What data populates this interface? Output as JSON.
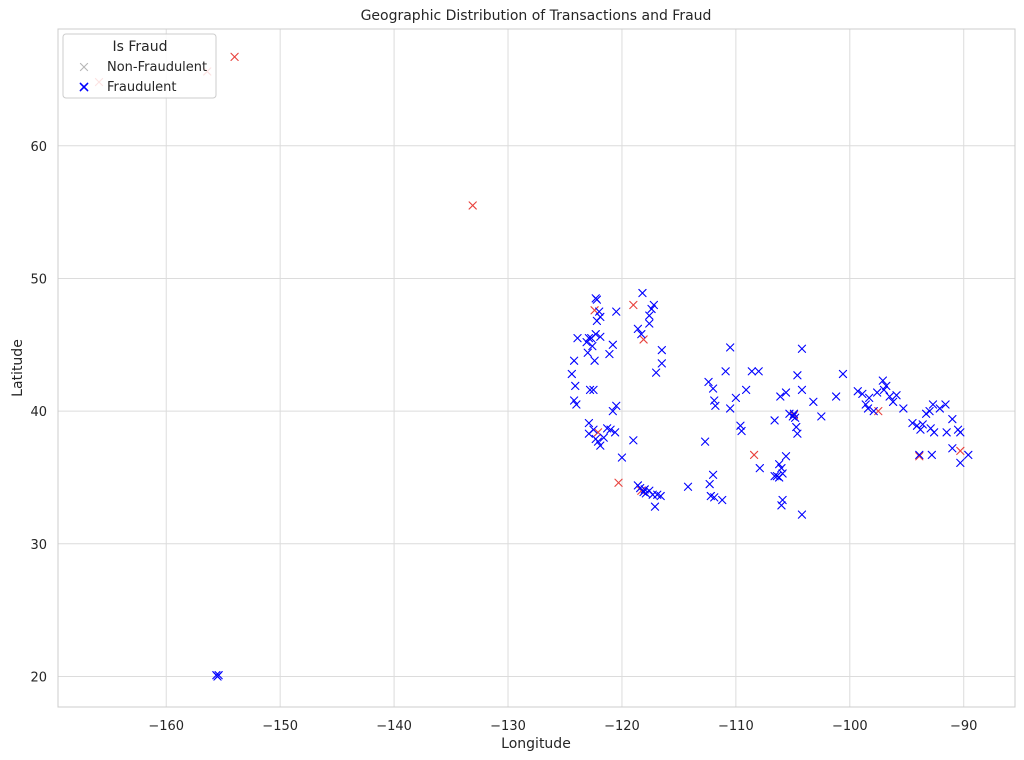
{
  "chart_data": {
    "type": "scatter",
    "title": "Geographic Distribution of Transactions and Fraud",
    "xlabel": "Longitude",
    "ylabel": "Latitude",
    "xlim": [
      -169.5,
      -85.5
    ],
    "ylim": [
      17.7,
      68.8
    ],
    "xticks": [
      -160,
      -150,
      -140,
      -130,
      -120,
      -110,
      -100,
      -90
    ],
    "yticks": [
      20,
      30,
      40,
      50,
      60
    ],
    "xtick_labels": [
      "−160",
      "−150",
      "−140",
      "−130",
      "−120",
      "−110",
      "−100",
      "−90"
    ],
    "ytick_labels": [
      "20",
      "30",
      "40",
      "50",
      "60"
    ],
    "grid": true,
    "legend": {
      "title": "Is Fraud",
      "position": "top-left",
      "entries": [
        "Non-Fraudulent",
        "Fraudulent"
      ]
    },
    "series": [
      {
        "name": "Non-Fraudulent",
        "color": "#e8413c",
        "legend_color": "#b7b7b7",
        "marker": "x",
        "points": [
          [
            -154.0,
            66.7
          ],
          [
            -156.4,
            65.6
          ],
          [
            -165.9,
            64.8
          ],
          [
            -133.1,
            55.5
          ],
          [
            -119.0,
            48.0
          ],
          [
            -122.4,
            47.6
          ],
          [
            -118.1,
            45.4
          ],
          [
            -122.1,
            38.4
          ],
          [
            -120.3,
            34.6
          ],
          [
            -108.4,
            36.7
          ],
          [
            -97.5,
            40.0
          ],
          [
            -93.9,
            36.6
          ],
          [
            -90.3,
            37.0
          ],
          [
            -118.3,
            34.0
          ],
          [
            -104.9,
            39.7
          ]
        ]
      },
      {
        "name": "Fraudulent",
        "color": "#0000ff",
        "marker": "x",
        "points": [
          [
            -155.6,
            20.1
          ],
          [
            -155.4,
            20.1
          ],
          [
            -155.5,
            20.0
          ],
          [
            -122.3,
            48.5
          ],
          [
            -122.2,
            48.4
          ],
          [
            -118.2,
            48.9
          ],
          [
            -117.4,
            47.7
          ],
          [
            -117.2,
            48.0
          ],
          [
            -122.0,
            47.5
          ],
          [
            -121.9,
            47.1
          ],
          [
            -122.2,
            46.8
          ],
          [
            -120.5,
            47.5
          ],
          [
            -117.6,
            47.2
          ],
          [
            -117.6,
            46.6
          ],
          [
            -122.3,
            45.8
          ],
          [
            -121.9,
            45.6
          ],
          [
            -122.7,
            45.5
          ],
          [
            -122.9,
            45.5
          ],
          [
            -123.1,
            45.2
          ],
          [
            -122.6,
            44.9
          ],
          [
            -123.0,
            44.4
          ],
          [
            -123.9,
            45.5
          ],
          [
            -124.2,
            43.8
          ],
          [
            -124.4,
            42.8
          ],
          [
            -124.1,
            41.9
          ],
          [
            -122.8,
            41.6
          ],
          [
            -122.5,
            41.6
          ],
          [
            -122.4,
            43.8
          ],
          [
            -120.8,
            45.0
          ],
          [
            -121.1,
            44.3
          ],
          [
            -116.5,
            44.6
          ],
          [
            -116.5,
            43.6
          ],
          [
            -117.0,
            42.9
          ],
          [
            -118.6,
            46.2
          ],
          [
            -118.3,
            45.8
          ],
          [
            -124.2,
            40.8
          ],
          [
            -124.0,
            40.5
          ],
          [
            -120.5,
            40.4
          ],
          [
            -120.8,
            40.0
          ],
          [
            -122.9,
            39.1
          ],
          [
            -122.5,
            38.6
          ],
          [
            -121.3,
            38.7
          ],
          [
            -121.0,
            38.6
          ],
          [
            -121.6,
            38.0
          ],
          [
            -122.3,
            37.9
          ],
          [
            -122.1,
            37.7
          ],
          [
            -121.9,
            37.4
          ],
          [
            -122.9,
            38.3
          ],
          [
            -120.6,
            38.4
          ],
          [
            -120.0,
            36.5
          ],
          [
            -119.0,
            37.8
          ],
          [
            -118.4,
            34.2
          ],
          [
            -118.0,
            34.1
          ],
          [
            -117.9,
            33.8
          ],
          [
            -117.6,
            34.0
          ],
          [
            -118.1,
            33.9
          ],
          [
            -117.3,
            33.7
          ],
          [
            -117.1,
            32.8
          ],
          [
            -116.6,
            33.6
          ],
          [
            -118.6,
            34.4
          ],
          [
            -116.9,
            33.7
          ],
          [
            -114.2,
            34.3
          ],
          [
            -112.2,
            33.6
          ],
          [
            -111.9,
            33.5
          ],
          [
            -112.0,
            35.2
          ],
          [
            -112.3,
            34.5
          ],
          [
            -111.2,
            33.3
          ],
          [
            -112.7,
            37.7
          ],
          [
            -112.4,
            42.2
          ],
          [
            -112.0,
            41.7
          ],
          [
            -111.9,
            40.8
          ],
          [
            -111.8,
            40.4
          ],
          [
            -110.5,
            40.2
          ],
          [
            -110.9,
            43.0
          ],
          [
            -110.5,
            44.8
          ],
          [
            -109.1,
            41.6
          ],
          [
            -110.0,
            41.0
          ],
          [
            -109.6,
            38.9
          ],
          [
            -109.5,
            38.5
          ],
          [
            -108.6,
            43.0
          ],
          [
            -108.0,
            43.0
          ],
          [
            -107.9,
            35.7
          ],
          [
            -106.6,
            35.1
          ],
          [
            -106.4,
            35.1
          ],
          [
            -106.2,
            35.0
          ],
          [
            -106.0,
            35.7
          ],
          [
            -105.9,
            35.3
          ],
          [
            -105.6,
            36.6
          ],
          [
            -105.9,
            33.3
          ],
          [
            -106.0,
            32.9
          ],
          [
            -104.2,
            32.2
          ],
          [
            -106.6,
            39.3
          ],
          [
            -106.1,
            41.1
          ],
          [
            -105.3,
            39.8
          ],
          [
            -104.8,
            39.5
          ],
          [
            -104.7,
            38.8
          ],
          [
            -104.6,
            38.3
          ],
          [
            -105.6,
            41.4
          ],
          [
            -104.2,
            41.6
          ],
          [
            -104.6,
            42.7
          ],
          [
            -104.2,
            44.7
          ],
          [
            -103.2,
            40.7
          ],
          [
            -102.5,
            39.6
          ],
          [
            -101.2,
            41.1
          ],
          [
            -100.6,
            42.8
          ],
          [
            -99.3,
            41.5
          ],
          [
            -98.9,
            41.3
          ],
          [
            -98.6,
            40.5
          ],
          [
            -98.4,
            40.2
          ],
          [
            -97.9,
            40.0
          ],
          [
            -97.1,
            42.3
          ],
          [
            -96.8,
            41.9
          ],
          [
            -96.5,
            41.1
          ],
          [
            -96.2,
            40.7
          ],
          [
            -95.9,
            41.2
          ],
          [
            -95.3,
            40.2
          ],
          [
            -94.5,
            39.1
          ],
          [
            -94.1,
            38.9
          ],
          [
            -93.8,
            38.6
          ],
          [
            -93.9,
            36.7
          ],
          [
            -93.6,
            39.0
          ],
          [
            -93.3,
            39.8
          ],
          [
            -93.0,
            40.0
          ],
          [
            -92.7,
            40.5
          ],
          [
            -92.1,
            40.2
          ],
          [
            -91.6,
            40.5
          ],
          [
            -91.5,
            38.4
          ],
          [
            -92.6,
            38.4
          ],
          [
            -92.9,
            38.7
          ],
          [
            -92.8,
            36.7
          ],
          [
            -91.0,
            39.4
          ],
          [
            -90.5,
            38.6
          ],
          [
            -90.3,
            38.4
          ],
          [
            -90.3,
            36.1
          ],
          [
            -89.6,
            36.7
          ],
          [
            -91.0,
            37.2
          ],
          [
            -97.6,
            41.4
          ],
          [
            -98.3,
            41.0
          ],
          [
            -97.0,
            41.6
          ],
          [
            -105.0,
            39.6
          ],
          [
            -104.9,
            39.8
          ],
          [
            -106.2,
            36.0
          ]
        ]
      }
    ]
  }
}
